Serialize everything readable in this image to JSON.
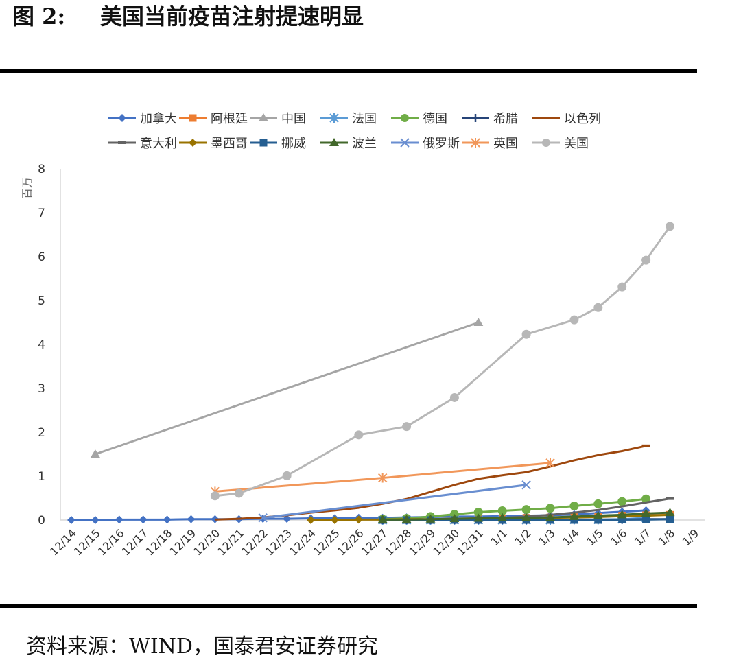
{
  "figure": {
    "label": "图 2:",
    "title": "美国当前疫苗注射提速明显"
  },
  "source_note": "资料来源：WIND，国泰君安证券研究",
  "chart_data": {
    "type": "line",
    "title": "",
    "ylabel": "百万",
    "xlabel": "",
    "ylim": [
      0,
      8
    ],
    "yticks": [
      0,
      1,
      2,
      3,
      4,
      5,
      6,
      7,
      8
    ],
    "grid": false,
    "legend_position": "top",
    "categories": [
      "12/14",
      "12/15",
      "12/16",
      "12/17",
      "12/18",
      "12/19",
      "12/20",
      "12/21",
      "12/22",
      "12/23",
      "12/24",
      "12/25",
      "12/26",
      "12/27",
      "12/28",
      "12/29",
      "12/30",
      "12/31",
      "1/1",
      "1/2",
      "1/3",
      "1/4",
      "1/5",
      "1/6",
      "1/7",
      "1/8",
      "1/9"
    ],
    "series": [
      {
        "name": "加拿大",
        "color": "#4472C4",
        "marker": "diamond",
        "x": [
          "12/14",
          "12/15",
          "12/16",
          "12/17",
          "12/18",
          "12/19",
          "12/20",
          "12/21",
          "12/22",
          "12/23",
          "12/24",
          "12/25",
          "12/26",
          "12/27",
          "12/28",
          "12/29",
          "12/30",
          "12/31",
          "1/1",
          "1/2",
          "1/3",
          "1/4",
          "1/5",
          "1/6",
          "1/7"
        ],
        "values": [
          0.0,
          0.0,
          0.01,
          0.01,
          0.01,
          0.02,
          0.02,
          0.02,
          0.03,
          0.03,
          0.04,
          0.04,
          0.05,
          0.05,
          0.06,
          0.07,
          0.08,
          0.08,
          0.09,
          0.1,
          0.11,
          0.13,
          0.16,
          0.19,
          0.22
        ]
      },
      {
        "name": "阿根廷",
        "color": "#ED7D31",
        "marker": "square",
        "x": [
          "12/29",
          "12/30",
          "12/31",
          "1/1",
          "1/2",
          "1/3",
          "1/4",
          "1/5",
          "1/6",
          "1/7",
          "1/8"
        ],
        "values": [
          0.02,
          0.03,
          0.04,
          0.04,
          0.05,
          0.06,
          0.07,
          0.08,
          0.1,
          0.11,
          0.12
        ]
      },
      {
        "name": "中国",
        "color": "#A5A5A5",
        "marker": "triangle",
        "x": [
          "12/15",
          "12/31"
        ],
        "values": [
          1.5,
          4.5
        ]
      },
      {
        "name": "法国",
        "color": "#5B9BD5",
        "marker": "star",
        "x": [
          "12/27",
          "12/28",
          "12/29",
          "12/30",
          "12/31",
          "1/1",
          "1/2",
          "1/3",
          "1/4",
          "1/5",
          "1/6",
          "1/7"
        ],
        "values": [
          0.0,
          0.0,
          0.0,
          0.0,
          0.0,
          0.0,
          0.0,
          0.0,
          0.01,
          0.01,
          0.02,
          0.05
        ]
      },
      {
        "name": "德国",
        "color": "#70AD47",
        "marker": "circle",
        "x": [
          "12/27",
          "12/28",
          "12/29",
          "12/30",
          "12/31",
          "1/1",
          "1/2",
          "1/3",
          "1/4",
          "1/5",
          "1/6",
          "1/7"
        ],
        "values": [
          0.02,
          0.04,
          0.08,
          0.13,
          0.18,
          0.21,
          0.24,
          0.27,
          0.32,
          0.37,
          0.42,
          0.48
        ]
      },
      {
        "name": "希腊",
        "color": "#264478",
        "marker": "plus",
        "x": [
          "12/27",
          "12/28",
          "12/29",
          "12/30",
          "12/31",
          "1/1",
          "1/2",
          "1/3",
          "1/4",
          "1/5",
          "1/6",
          "1/7",
          "1/8"
        ],
        "values": [
          0.0,
          0.0,
          0.0,
          0.0,
          0.0,
          0.0,
          0.0,
          0.01,
          0.01,
          0.01,
          0.01,
          0.02,
          0.02
        ]
      },
      {
        "name": "以色列",
        "color": "#9E480E",
        "marker": "dash",
        "x": [
          "12/20",
          "12/21",
          "12/22",
          "12/23",
          "12/24",
          "12/25",
          "12/26",
          "12/27",
          "12/28",
          "12/29",
          "12/30",
          "12/31",
          "1/1",
          "1/2",
          "1/3",
          "1/4",
          "1/5",
          "1/6",
          "1/7"
        ],
        "values": [
          0.01,
          0.03,
          0.06,
          0.11,
          0.17,
          0.22,
          0.28,
          0.37,
          0.48,
          0.64,
          0.8,
          0.94,
          1.02,
          1.09,
          1.22,
          1.36,
          1.48,
          1.57,
          1.69
        ]
      },
      {
        "name": "意大利",
        "color": "#636363",
        "marker": "dash",
        "x": [
          "12/27",
          "12/28",
          "12/29",
          "12/30",
          "12/31",
          "1/1",
          "1/2",
          "1/3",
          "1/4",
          "1/5",
          "1/6",
          "1/7",
          "1/8"
        ],
        "values": [
          0.01,
          0.01,
          0.01,
          0.02,
          0.04,
          0.05,
          0.08,
          0.12,
          0.17,
          0.23,
          0.31,
          0.4,
          0.49
        ]
      },
      {
        "name": "墨西哥",
        "color": "#997300",
        "marker": "diamond",
        "x": [
          "12/24",
          "12/25",
          "12/26",
          "12/27",
          "12/28",
          "12/29",
          "12/30",
          "12/31",
          "1/1",
          "1/2",
          "1/3",
          "1/4",
          "1/5",
          "1/6",
          "1/7",
          "1/8"
        ],
        "values": [
          0.0,
          0.0,
          0.01,
          0.01,
          0.02,
          0.02,
          0.03,
          0.03,
          0.04,
          0.04,
          0.05,
          0.06,
          0.07,
          0.09,
          0.1,
          0.12
        ]
      },
      {
        "name": "挪威",
        "color": "#255E91",
        "marker": "square",
        "x": [
          "12/27",
          "12/28",
          "12/29",
          "12/30",
          "12/31",
          "1/1",
          "1/2",
          "1/3",
          "1/4",
          "1/5",
          "1/6",
          "1/7",
          "1/8"
        ],
        "values": [
          0.0,
          0.0,
          0.0,
          0.0,
          0.0,
          0.0,
          0.0,
          0.0,
          0.0,
          0.0,
          0.01,
          0.01,
          0.02
        ]
      },
      {
        "name": "波兰",
        "color": "#43682B",
        "marker": "triangle",
        "x": [
          "12/27",
          "12/28",
          "12/29",
          "12/30",
          "12/31",
          "1/1",
          "1/2",
          "1/3",
          "1/4",
          "1/5",
          "1/6",
          "1/7",
          "1/8"
        ],
        "values": [
          0.01,
          0.01,
          0.02,
          0.03,
          0.04,
          0.05,
          0.05,
          0.06,
          0.08,
          0.1,
          0.12,
          0.15,
          0.17
        ]
      },
      {
        "name": "俄罗斯",
        "color": "#698ED0",
        "marker": "x",
        "x": [
          "12/22",
          "1/2"
        ],
        "values": [
          0.05,
          0.8
        ]
      },
      {
        "name": "英国",
        "color": "#F1975A",
        "marker": "asterisk",
        "x": [
          "12/20",
          "12/27",
          "1/3"
        ],
        "values": [
          0.65,
          0.96,
          1.3
        ]
      },
      {
        "name": "美国",
        "color": "#B7B7B7",
        "marker": "circle",
        "x": [
          "12/20",
          "12/21",
          "12/23",
          "12/26",
          "12/28",
          "12/30",
          "1/2",
          "1/4",
          "1/5",
          "1/6",
          "1/7",
          "1/8"
        ],
        "values": [
          0.55,
          0.61,
          1.01,
          1.94,
          2.13,
          2.79,
          4.23,
          4.56,
          4.84,
          5.31,
          5.92,
          6.69
        ]
      }
    ]
  }
}
